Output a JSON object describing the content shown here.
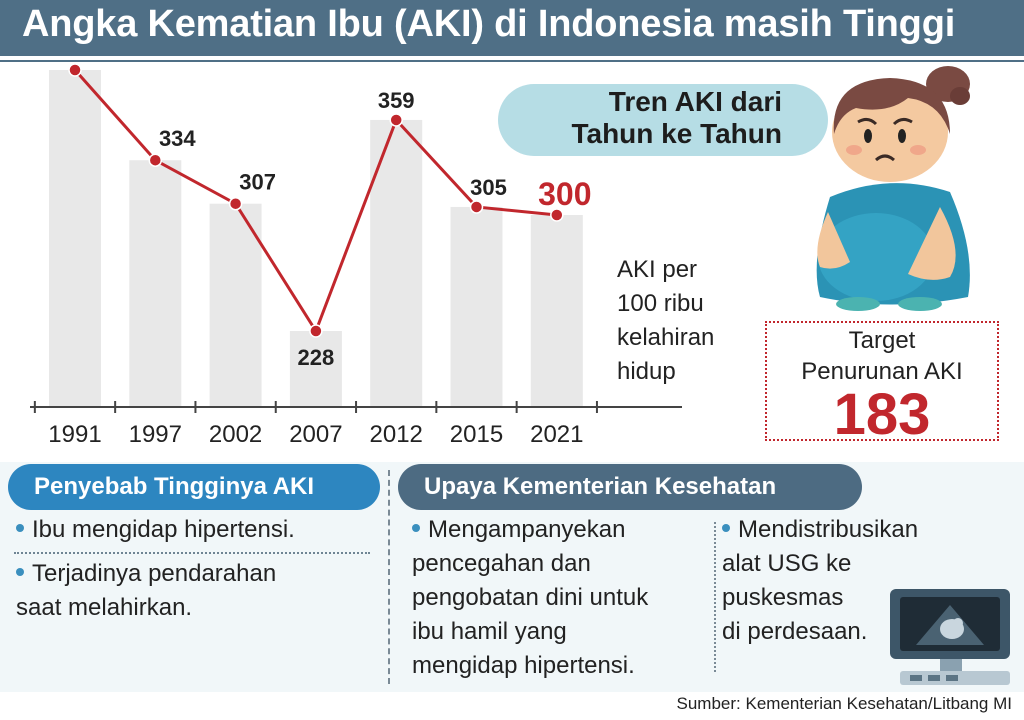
{
  "title": "Angka Kematian Ibu (AKI) di Indonesia masih Tinggi",
  "chart_data": {
    "type": "line",
    "categories": [
      "1991",
      "1997",
      "2002",
      "2007",
      "2012",
      "2015",
      "2021"
    ],
    "values": [
      390,
      334,
      307,
      228,
      359,
      305,
      300
    ],
    "highlight_indices": [
      0,
      6
    ],
    "unit_label": "AKI per 100 ribu kelahiran hidup",
    "line_color": "#c1272d",
    "bar_color": "#e8e8e8",
    "highlight_color": "#c1272d"
  },
  "unit_label_lines": [
    "AKI per",
    "100 ribu",
    "kelahiran",
    "hidup"
  ],
  "trend": {
    "line1": "Tren AKI dari",
    "line2": "Tahun ke Tahun"
  },
  "target": {
    "label_line1": "Target",
    "label_line2": "Penurunan AKI",
    "value": "183"
  },
  "causes": {
    "heading": "Penyebab Tingginya AKI",
    "items": [
      "Ibu mengidap hipertensi.",
      "Terjadinya pendarahan\nsaat melahirkan."
    ]
  },
  "efforts": {
    "heading": "Upaya Kementerian Kesehatan",
    "items": [
      "Mengampanyekan\npencegahan dan\npengobatan dini untuk\nibu hamil yang\nmengidap hipertensi.",
      "Mendistribusikan\nalat USG ke\npuskesmas\ndi perdesaan."
    ]
  },
  "source": "Sumber: Kementerian Kesehatan/Litbang MI",
  "colors": {
    "title_bar": "#4f6f86",
    "accent_red": "#c1272d",
    "pill_blue": "#2d86c0",
    "pill_slate": "#4d6b82",
    "trend_pill": "#b6dde5"
  }
}
